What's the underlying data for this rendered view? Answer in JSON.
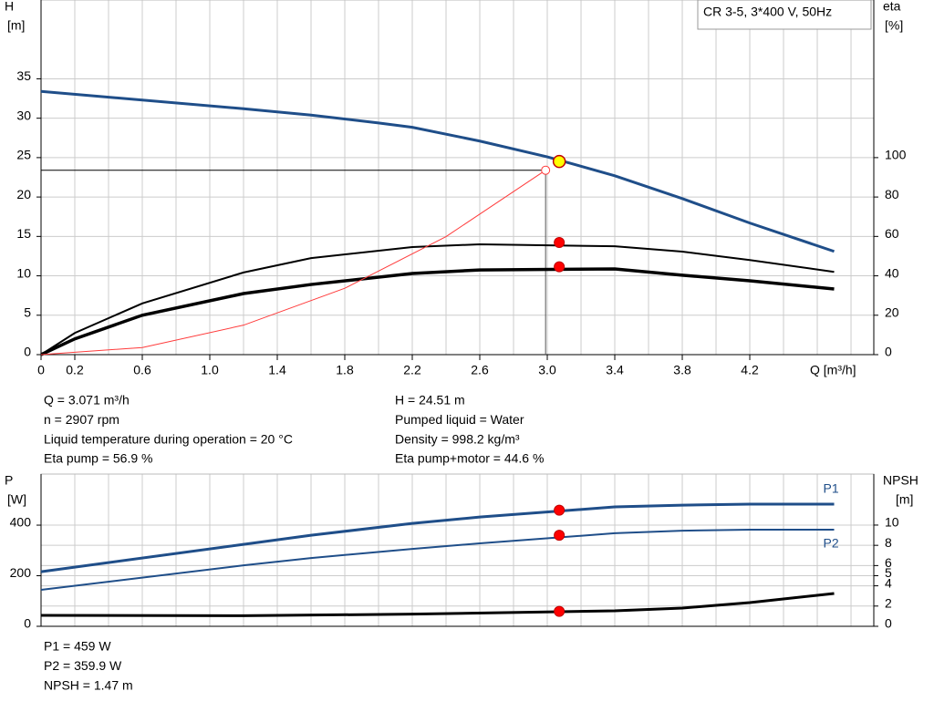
{
  "chart_data": [
    {
      "type": "line",
      "title": "CR 3-5, 3*400 V, 50Hz",
      "ylabel": "H",
      "yunit": "[m]",
      "y2label": "eta",
      "y2unit": "[%]",
      "xlabel": "Q [m³/h]",
      "xlim": [
        0,
        4.935
      ],
      "ylim": [
        0,
        45
      ],
      "y2lim": [
        0,
        180
      ],
      "xticks": [
        0,
        0.2,
        0.6,
        {
          "value": 1,
          "label": "1.0"
        },
        1.4,
        1.8,
        2.2,
        2.6,
        {
          "value": 3,
          "label": "3.0"
        },
        3.4,
        3.8,
        4.2
      ],
      "yticks": [
        0,
        5,
        10,
        15,
        20,
        25,
        30,
        35
      ],
      "y2ticks": [
        0,
        20,
        40,
        60,
        80,
        100
      ],
      "xgrid": [
        0.2,
        0.4,
        0.6,
        0.8,
        1,
        1.2,
        1.4,
        1.6,
        1.8,
        2,
        2.2,
        2.4,
        2.6,
        2.8,
        3,
        3.2,
        3.4,
        3.6,
        3.8,
        4,
        4.2,
        4.4,
        4.6,
        4.8
      ],
      "grid": true,
      "series": [
        {
          "color": "#1f4e89",
          "width": 3,
          "x": [
            0,
            1.2,
            1.6,
            2.0,
            2.2,
            2.6,
            3.0,
            3.4,
            3.8,
            4.2,
            4.7
          ],
          "values": [
            33.4,
            31.2,
            30.4,
            29.4,
            28.85,
            27.1,
            25.1,
            22.7,
            19.8,
            16.7,
            13.1
          ]
        },
        {
          "axis": "y2",
          "color": "#000000",
          "width": 2,
          "x": [
            0,
            0.2,
            0.6,
            1.2,
            1.6,
            2.2,
            2.6,
            3.4,
            3.8,
            4.2,
            4.7
          ],
          "values": [
            0,
            11,
            26,
            41.7,
            49,
            54.6,
            56,
            55,
            52.3,
            48,
            42
          ],
          "point": 56.9
        },
        {
          "axis": "y2",
          "color": "#000000",
          "width": 3.5,
          "x": [
            0,
            0.2,
            0.6,
            1.2,
            1.6,
            2.2,
            2.6,
            3.4,
            3.8,
            4.2,
            4.7
          ],
          "values": [
            0,
            8,
            20,
            31,
            35.6,
            41.2,
            43,
            43.5,
            40.3,
            37.5,
            33.3
          ],
          "point": 44.6
        },
        {
          "color": "#ff3b3b",
          "width": 1,
          "x": [
            0,
            0.6,
            1.2,
            1.8,
            2.4,
            2.99
          ],
          "values": [
            0,
            0.9,
            3.74,
            8.42,
            14.98,
            23.4
          ]
        }
      ],
      "point_x": 3.071,
      "duty_point": {
        "x": 3.071,
        "y": 24.51,
        "color": "#ffff00"
      },
      "requested_point": {
        "x": 2.99,
        "y": 23.4
      },
      "notes": [
        [
          "Q = 3.071 m³/h",
          "n = 2907 rpm",
          "Liquid temperature during operation = 20 °C",
          "Eta pump = 56.9 %"
        ],
        [
          "H = 24.51 m",
          "Pumped liquid = Water",
          "Density = 998.2 kg/m³",
          "Eta pump+motor = 44.6 %"
        ]
      ]
    },
    {
      "type": "line",
      "ylabel": "P",
      "yunit": "[W]",
      "y2label": "NPSH",
      "y2unit": "[m]",
      "xlim": [
        0,
        4.935
      ],
      "ylim": [
        0,
        602
      ],
      "y2lim": [
        0,
        15.04
      ],
      "yticks": [
        0,
        200,
        400
      ],
      "y2ticks": [
        0,
        2,
        4,
        5,
        6,
        8,
        10
      ],
      "xgrid": [
        0.2,
        0.4,
        0.6,
        0.8,
        1,
        1.2,
        1.4,
        1.6,
        1.8,
        2,
        2.2,
        2.4,
        2.6,
        2.8,
        3,
        3.2,
        3.4,
        3.6,
        3.8,
        4,
        4.2,
        4.4,
        4.6,
        4.8
      ],
      "grid": true,
      "series": [
        {
          "name": "P1",
          "label_pos": "above",
          "color": "#1f4e89",
          "width": 3,
          "x": [
            0,
            1.2,
            1.6,
            2.2,
            2.6,
            3.4,
            3.8,
            4.2,
            4.7
          ],
          "values": [
            216,
            324,
            360,
            407,
            432,
            472,
            479,
            483,
            483
          ],
          "point": 459
        },
        {
          "name": "P2",
          "label_pos": "below",
          "color": "#1f4e89",
          "width": 2,
          "x": [
            0,
            1.2,
            1.6,
            2.2,
            2.6,
            3.4,
            3.8,
            4.2,
            4.7
          ],
          "values": [
            144,
            241,
            270,
            306,
            328,
            368,
            378,
            382,
            382
          ],
          "point": 359.9
        },
        {
          "axis": "y2",
          "color": "#000000",
          "width": 3,
          "x": [
            0,
            1.2,
            2.2,
            3.4,
            3.8,
            4.2,
            4.7
          ],
          "values": [
            1.08,
            1.05,
            1.2,
            1.53,
            1.8,
            2.34,
            3.24
          ],
          "point": 1.47
        }
      ],
      "point_x": 3.071,
      "notes": [
        [
          "P1 = 459 W",
          "P2 = 359.9 W",
          "NPSH = 1.47 m"
        ]
      ]
    }
  ]
}
